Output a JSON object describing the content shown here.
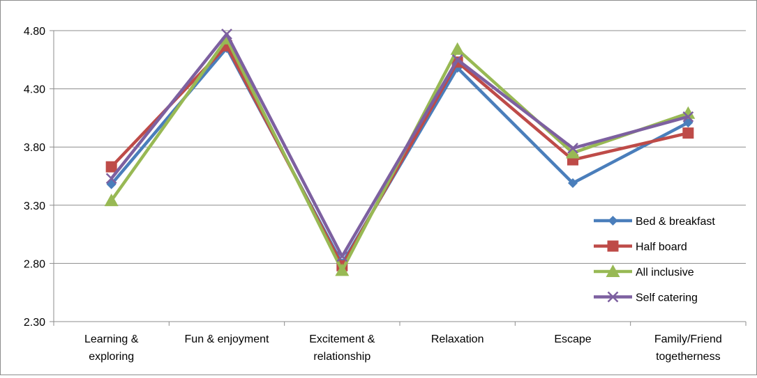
{
  "chart_data": {
    "type": "line",
    "categories": [
      [
        "Learning &",
        "exploring"
      ],
      [
        "Fun & enjoyment"
      ],
      [
        "Excitement &",
        "relationship"
      ],
      [
        "Relaxation"
      ],
      [
        "Escape"
      ],
      [
        "Family/Friend",
        "togetherness"
      ]
    ],
    "ylim": [
      2.3,
      4.8
    ],
    "yticks": [
      "2.30",
      "2.80",
      "3.30",
      "3.80",
      "4.30",
      "4.80"
    ],
    "grid": true,
    "legend_position": "right",
    "series": [
      {
        "name": "Bed & breakfast",
        "color": "#4a7ebb",
        "marker": "diamond",
        "values": [
          3.48,
          4.65,
          2.8,
          4.48,
          3.49,
          4.01
        ]
      },
      {
        "name": "Half board",
        "color": "#be4b48",
        "marker": "square",
        "values": [
          3.63,
          4.67,
          2.78,
          4.53,
          3.69,
          3.92
        ]
      },
      {
        "name": "All inclusive",
        "color": "#98b954",
        "marker": "triangle",
        "values": [
          3.34,
          4.73,
          2.74,
          4.64,
          3.75,
          4.09
        ]
      },
      {
        "name": "Self catering",
        "color": "#7d60a0",
        "marker": "x",
        "values": [
          3.53,
          4.77,
          2.86,
          4.55,
          3.79,
          4.06
        ]
      }
    ]
  }
}
